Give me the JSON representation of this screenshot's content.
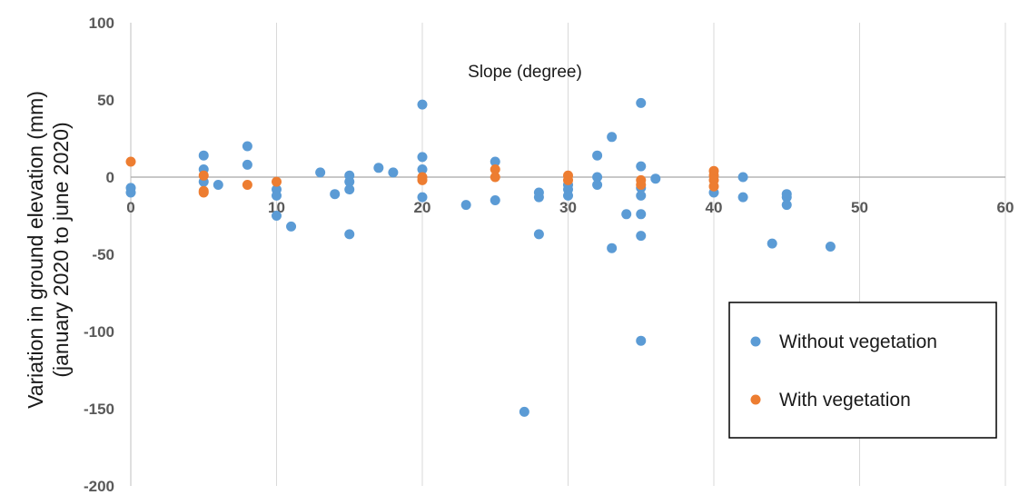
{
  "chart_data": {
    "type": "scatter",
    "title": "",
    "xlabel": "Slope (degree)",
    "ylabel": [
      "Variation in ground elevation (mm)",
      "(january 2020 to june 2020)"
    ],
    "xlim": [
      0,
      60
    ],
    "ylim": [
      -200,
      100
    ],
    "xticks": [
      0,
      10,
      20,
      30,
      40,
      50,
      60
    ],
    "yticks": [
      100,
      50,
      0,
      -50,
      -100,
      -150,
      -200
    ],
    "grid": "vertical",
    "legend_position": "bottom-right",
    "series": [
      {
        "name": "Without vegetation",
        "color": "#5b9bd5",
        "points": [
          [
            0,
            -7
          ],
          [
            0,
            -10
          ],
          [
            5,
            14
          ],
          [
            5,
            5
          ],
          [
            5,
            -3
          ],
          [
            6,
            -5
          ],
          [
            8,
            20
          ],
          [
            8,
            8
          ],
          [
            10,
            -8
          ],
          [
            10,
            -12
          ],
          [
            10,
            -25
          ],
          [
            11,
            -32
          ],
          [
            13,
            3
          ],
          [
            14,
            -11
          ],
          [
            15,
            1
          ],
          [
            15,
            -3
          ],
          [
            15,
            -8
          ],
          [
            15,
            -37
          ],
          [
            17,
            6
          ],
          [
            18,
            3
          ],
          [
            20,
            47
          ],
          [
            20,
            13
          ],
          [
            20,
            5
          ],
          [
            20,
            -13
          ],
          [
            23,
            -18
          ],
          [
            25,
            10
          ],
          [
            25,
            -15
          ],
          [
            27,
            -152
          ],
          [
            28,
            -10
          ],
          [
            28,
            -13
          ],
          [
            28,
            -37
          ],
          [
            30,
            -5
          ],
          [
            30,
            -8
          ],
          [
            30,
            -12
          ],
          [
            32,
            14
          ],
          [
            32,
            0
          ],
          [
            32,
            -5
          ],
          [
            33,
            26
          ],
          [
            33,
            -46
          ],
          [
            34,
            -24
          ],
          [
            35,
            48
          ],
          [
            35,
            7
          ],
          [
            35,
            -7
          ],
          [
            35,
            -12
          ],
          [
            35,
            -24
          ],
          [
            35,
            -38
          ],
          [
            35,
            -106
          ],
          [
            36,
            -1
          ],
          [
            40,
            -10
          ],
          [
            42,
            0
          ],
          [
            42,
            -13
          ],
          [
            44,
            -43
          ],
          [
            45,
            -11
          ],
          [
            45,
            -13
          ],
          [
            45,
            -18
          ],
          [
            48,
            -45
          ]
        ]
      },
      {
        "name": "With vegetation",
        "color": "#ed7d31",
        "points": [
          [
            0,
            10
          ],
          [
            5,
            1
          ],
          [
            5,
            -9
          ],
          [
            5,
            -10
          ],
          [
            8,
            -5
          ],
          [
            10,
            -3
          ],
          [
            20,
            0
          ],
          [
            20,
            -2
          ],
          [
            25,
            5
          ],
          [
            25,
            0
          ],
          [
            30,
            1
          ],
          [
            30,
            -2
          ],
          [
            35,
            -2
          ],
          [
            35,
            -5
          ],
          [
            40,
            4
          ],
          [
            40,
            1
          ],
          [
            40,
            -2
          ],
          [
            40,
            -6
          ]
        ]
      }
    ]
  }
}
